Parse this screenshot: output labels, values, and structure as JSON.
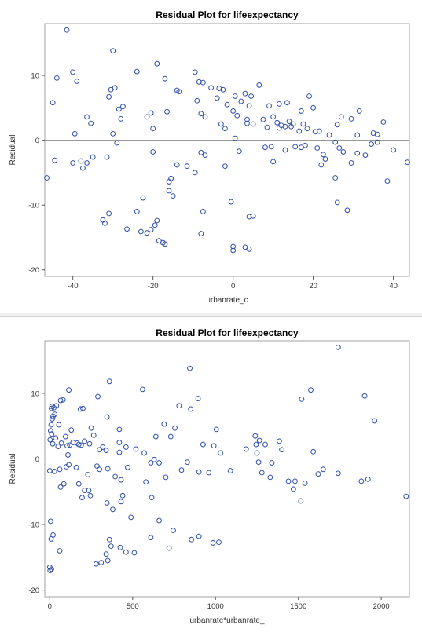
{
  "chart_data": [
    {
      "type": "scatter",
      "title": "Residual Plot for lifeexpectancy",
      "xlabel": "urbanrate_c",
      "ylabel": "Residual",
      "xlim": [
        -47,
        44
      ],
      "ylim": [
        -21,
        18
      ],
      "xticks": [
        -40,
        -20,
        0,
        20,
        40
      ],
      "yticks": [
        -20,
        -10,
        0,
        10
      ],
      "reference_line_y": 0,
      "marker": "open-circle",
      "marker_color": "#2f4ea8",
      "grid": false,
      "points": [
        [
          -41.5,
          17.0
        ],
        [
          -30.0,
          13.8
        ],
        [
          -40.0,
          10.5
        ],
        [
          -24.0,
          10.6
        ],
        [
          -19.0,
          11.8
        ],
        [
          -44.0,
          9.6
        ],
        [
          -39.0,
          9.1
        ],
        [
          -17.0,
          9.5
        ],
        [
          -9.5,
          10.5
        ],
        [
          -8.5,
          9.0
        ],
        [
          -7.5,
          8.9
        ],
        [
          -29.5,
          8.1
        ],
        [
          -30.5,
          7.8
        ],
        [
          -14.0,
          7.7
        ],
        [
          -13.5,
          7.5
        ],
        [
          -5.5,
          8.1
        ],
        [
          -3.5,
          8.0
        ],
        [
          -2.5,
          7.8
        ],
        [
          6.5,
          8.5
        ],
        [
          3.0,
          7.2
        ],
        [
          4.5,
          6.8
        ],
        [
          19.0,
          6.8
        ],
        [
          13.5,
          5.8
        ],
        [
          -45.0,
          5.8
        ],
        [
          -31.0,
          6.7
        ],
        [
          -28.5,
          4.8
        ],
        [
          -27.5,
          5.2
        ],
        [
          -20.5,
          4.2
        ],
        [
          -21.5,
          3.6
        ],
        [
          -9.0,
          6.1
        ],
        [
          -4.0,
          6.5
        ],
        [
          -1.5,
          5.5
        ],
        [
          0.5,
          6.8
        ],
        [
          2.0,
          6.0
        ],
        [
          4.0,
          5.3
        ],
        [
          9.0,
          5.3
        ],
        [
          11.5,
          5.6
        ],
        [
          17.0,
          4.5
        ],
        [
          20.0,
          5.0
        ],
        [
          27.0,
          3.6
        ],
        [
          31.5,
          4.5
        ],
        [
          -36.5,
          3.6
        ],
        [
          -35.5,
          2.6
        ],
        [
          -28.0,
          3.3
        ],
        [
          -16.5,
          4.4
        ],
        [
          -20.0,
          1.8
        ],
        [
          -8.0,
          4.1
        ],
        [
          -7.0,
          3.6
        ],
        [
          -3.0,
          2.5
        ],
        [
          -2.0,
          1.8
        ],
        [
          0.0,
          4.5
        ],
        [
          1.0,
          3.8
        ],
        [
          3.5,
          3.2
        ],
        [
          3.5,
          2.6
        ],
        [
          5.0,
          2.5
        ],
        [
          7.5,
          3.2
        ],
        [
          8.5,
          2.0
        ],
        [
          10.0,
          3.6
        ],
        [
          11.0,
          2.7
        ],
        [
          11.5,
          1.9
        ],
        [
          12.0,
          2.3
        ],
        [
          13.0,
          2.1
        ],
        [
          14.0,
          2.9
        ],
        [
          14.5,
          2.1
        ],
        [
          15.0,
          2.5
        ],
        [
          16.5,
          1.4
        ],
        [
          17.5,
          2.5
        ],
        [
          18.5,
          1.8
        ],
        [
          20.5,
          1.3
        ],
        [
          21.5,
          1.4
        ],
        [
          24.0,
          0.8
        ],
        [
          26.0,
          2.4
        ],
        [
          29.5,
          3.3
        ],
        [
          31.0,
          0.8
        ],
        [
          35.0,
          1.1
        ],
        [
          36.0,
          0.9
        ],
        [
          37.5,
          2.8
        ],
        [
          -39.5,
          1.0
        ],
        [
          -30.0,
          1.0
        ],
        [
          -29.0,
          -0.4
        ],
        [
          -44.5,
          -3.1
        ],
        [
          -40.0,
          -3.5
        ],
        [
          -38.0,
          -3.2
        ],
        [
          -37.5,
          -4.3
        ],
        [
          -36.5,
          -3.5
        ],
        [
          -35.0,
          -2.6
        ],
        [
          -31.5,
          -2.6
        ],
        [
          -20.0,
          -1.8
        ],
        [
          -14.0,
          -3.8
        ],
        [
          -11.5,
          -4.0
        ],
        [
          -8.0,
          -1.9
        ],
        [
          -7.0,
          -2.3
        ],
        [
          -2.0,
          -4.0
        ],
        [
          0.5,
          0.3
        ],
        [
          1.5,
          -1.7
        ],
        [
          8.0,
          -1.1
        ],
        [
          9.5,
          -1.0
        ],
        [
          10.0,
          -3.3
        ],
        [
          13.0,
          -1.5
        ],
        [
          15.5,
          -1.0
        ],
        [
          17.0,
          -1.1
        ],
        [
          18.0,
          -0.8
        ],
        [
          21.0,
          -1.2
        ],
        [
          22.5,
          -2.2
        ],
        [
          25.5,
          -0.3
        ],
        [
          26.5,
          -1.2
        ],
        [
          27.5,
          -1.8
        ],
        [
          29.5,
          -3.5
        ],
        [
          31.0,
          -2.0
        ],
        [
          33.0,
          -2.3
        ],
        [
          34.5,
          -0.6
        ],
        [
          36.0,
          -0.3
        ],
        [
          40.0,
          -1.5
        ],
        [
          43.5,
          -3.4
        ],
        [
          -46.5,
          -5.8
        ],
        [
          -16.0,
          -6.4
        ],
        [
          -15.5,
          -5.9
        ],
        [
          -9.5,
          -5.0
        ],
        [
          -16.0,
          -7.8
        ],
        [
          -15.0,
          -8.6
        ],
        [
          -22.5,
          -8.9
        ],
        [
          -7.5,
          -11.0
        ],
        [
          -24.0,
          -11.0
        ],
        [
          -31.0,
          -11.3
        ],
        [
          -32.5,
          -12.3
        ],
        [
          -32.0,
          -12.8
        ],
        [
          -19.0,
          -12.4
        ],
        [
          -19.5,
          -13.1
        ],
        [
          -26.5,
          -13.7
        ],
        [
          -23.0,
          -14.1
        ],
        [
          -21.5,
          -14.3
        ],
        [
          -20.5,
          -13.8
        ],
        [
          -8.0,
          -14.4
        ],
        [
          -18.5,
          -15.5
        ],
        [
          -17.5,
          -15.8
        ],
        [
          -17.0,
          -16.0
        ],
        [
          0.0,
          -16.4
        ],
        [
          0.0,
          -17.0
        ],
        [
          3.0,
          -16.5
        ],
        [
          4.0,
          -16.8
        ],
        [
          4.0,
          -11.8
        ],
        [
          5.0,
          -11.7
        ],
        [
          -0.5,
          -9.5
        ],
        [
          25.5,
          -5.8
        ],
        [
          26.0,
          -9.6
        ],
        [
          28.5,
          -10.8
        ],
        [
          38.5,
          -6.3
        ],
        [
          23.0,
          -2.9
        ],
        [
          22.0,
          -3.8
        ]
      ]
    },
    {
      "type": "scatter",
      "title": "Residual Plot for lifeexpectancy",
      "xlabel": "urbanrate*urbanrate_",
      "ylabel": "Residual",
      "xlim": [
        -30,
        2170
      ],
      "ylim": [
        -21,
        18
      ],
      "xticks": [
        0,
        500,
        1000,
        1500,
        2000
      ],
      "yticks": [
        -20,
        -10,
        0,
        10
      ],
      "reference_line_y": 0,
      "marker": "open-circle",
      "marker_color": "#2f4ea8",
      "grid": false,
      "points": [
        [
          1740,
          17.0
        ],
        [
          845,
          13.8
        ],
        [
          1575,
          10.5
        ],
        [
          560,
          10.6
        ],
        [
          360,
          11.8
        ],
        [
          1900,
          9.6
        ],
        [
          1520,
          9.1
        ],
        [
          895,
          9.2
        ],
        [
          80,
          9.0
        ],
        [
          65,
          8.9
        ],
        [
          40,
          8.1
        ],
        [
          25,
          7.8
        ],
        [
          13,
          8.0
        ],
        [
          10,
          7.7
        ],
        [
          30,
          6.8
        ],
        [
          780,
          8.1
        ],
        [
          850,
          7.6
        ],
        [
          1960,
          5.8
        ],
        [
          115,
          10.5
        ],
        [
          200,
          7.7
        ],
        [
          185,
          7.6
        ],
        [
          345,
          6.4
        ],
        [
          290,
          9.5
        ],
        [
          20,
          6.5
        ],
        [
          15,
          6.1
        ],
        [
          8,
          5.2
        ],
        [
          55,
          5.2
        ],
        [
          130,
          4.4
        ],
        [
          250,
          4.7
        ],
        [
          420,
          4.5
        ],
        [
          640,
          3.4
        ],
        [
          690,
          5.3
        ],
        [
          730,
          3.4
        ],
        [
          1005,
          4.5
        ],
        [
          1265,
          2.8
        ],
        [
          1385,
          2.7
        ],
        [
          5,
          4.3
        ],
        [
          12,
          3.8
        ],
        [
          35,
          3.2
        ],
        [
          95,
          3.4
        ],
        [
          140,
          2.5
        ],
        [
          165,
          2.4
        ],
        [
          175,
          2.2
        ],
        [
          210,
          2.7
        ],
        [
          265,
          3.6
        ],
        [
          300,
          1.4
        ],
        [
          420,
          2.5
        ],
        [
          460,
          1.8
        ],
        [
          520,
          1.5
        ],
        [
          755,
          4.7
        ],
        [
          925,
          2.2
        ],
        [
          990,
          2.0
        ],
        [
          1185,
          1.5
        ],
        [
          1245,
          2.2
        ],
        [
          1300,
          2.2
        ],
        [
          1240,
          3.5
        ],
        [
          1590,
          1.1
        ],
        [
          2,
          2.9
        ],
        [
          18,
          2.3
        ],
        [
          50,
          1.9
        ],
        [
          70,
          2.4
        ],
        [
          105,
          2.0
        ],
        [
          110,
          0.6
        ],
        [
          120,
          2.1
        ],
        [
          190,
          2.1
        ],
        [
          240,
          2.3
        ],
        [
          320,
          1.8
        ],
        [
          340,
          1.3
        ],
        [
          420,
          1.0
        ],
        [
          570,
          0.9
        ],
        [
          630,
          -0.1
        ],
        [
          660,
          -0.6
        ],
        [
          830,
          -0.5
        ],
        [
          1030,
          0.9
        ],
        [
          1250,
          0.9
        ],
        [
          1260,
          -0.5
        ],
        [
          1280,
          -2.1
        ],
        [
          1340,
          -0.6
        ],
        [
          1400,
          1.4
        ],
        [
          0,
          -1.8
        ],
        [
          28,
          -1.9
        ],
        [
          60,
          -1.6
        ],
        [
          85,
          -3.8
        ],
        [
          100,
          -1.2
        ],
        [
          115,
          -0.9
        ],
        [
          160,
          -1.3
        ],
        [
          175,
          -3.8
        ],
        [
          230,
          -2.4
        ],
        [
          285,
          -1.1
        ],
        [
          300,
          -1.6
        ],
        [
          350,
          -1.5
        ],
        [
          395,
          -2.7
        ],
        [
          430,
          -3.2
        ],
        [
          470,
          -1.3
        ],
        [
          580,
          -3.5
        ],
        [
          610,
          -0.6
        ],
        [
          700,
          -2.8
        ],
        [
          795,
          -1.7
        ],
        [
          900,
          -2.0
        ],
        [
          960,
          -2.1
        ],
        [
          1090,
          -1.8
        ],
        [
          1330,
          -2.8
        ],
        [
          1440,
          -3.4
        ],
        [
          1480,
          -3.4
        ],
        [
          1540,
          -3.7
        ],
        [
          1620,
          -2.3
        ],
        [
          1650,
          -1.6
        ],
        [
          1740,
          -2.2
        ],
        [
          1880,
          -3.4
        ],
        [
          1920,
          -3.1
        ],
        [
          2150,
          -5.7
        ],
        [
          65,
          -4.3
        ],
        [
          210,
          -4.8
        ],
        [
          235,
          -4.8
        ],
        [
          245,
          -5.6
        ],
        [
          195,
          -5.9
        ],
        [
          1470,
          -4.6
        ],
        [
          1515,
          -6.4
        ],
        [
          345,
          -6.7
        ],
        [
          430,
          -6.5
        ],
        [
          380,
          -7.7
        ],
        [
          440,
          -5.6
        ],
        [
          490,
          -8.9
        ],
        [
          660,
          -9.4
        ],
        [
          615,
          -5.9
        ],
        [
          5,
          -9.5
        ],
        [
          20,
          -11.6
        ],
        [
          8,
          -12.2
        ],
        [
          745,
          -10.9
        ],
        [
          855,
          -12.3
        ],
        [
          900,
          -11.8
        ],
        [
          985,
          -12.8
        ],
        [
          1020,
          -12.7
        ],
        [
          610,
          -12.0
        ],
        [
          360,
          -12.3
        ],
        [
          370,
          -13.3
        ],
        [
          425,
          -13.5
        ],
        [
          340,
          -14.5
        ],
        [
          460,
          -14.2
        ],
        [
          510,
          -14.3
        ],
        [
          720,
          -13.6
        ],
        [
          60,
          -14.0
        ],
        [
          350,
          -15.5
        ],
        [
          310,
          -15.8
        ],
        [
          280,
          -16.0
        ],
        [
          0,
          -16.5
        ],
        [
          2,
          -17.0
        ],
        [
          10,
          -16.8
        ]
      ]
    }
  ]
}
